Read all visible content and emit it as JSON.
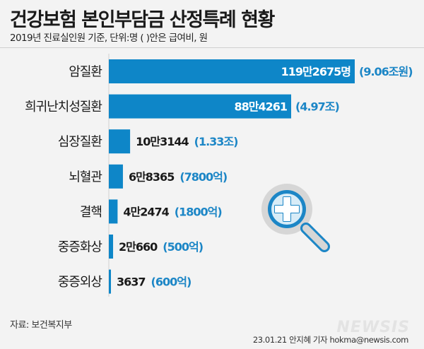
{
  "header": {
    "title": "건강보험 본인부담금 산정특례 현황",
    "subtitle": "2019년 진료실인원 기준, 단위:명 ( )안은 급여비, 원"
  },
  "footer": {
    "source": "자료: 보건복지부",
    "credit": "23.01.21 안지혜 기자 hokma@newsis.com",
    "logo": "NEWSIS"
  },
  "colors": {
    "bar": "#0e86c8",
    "accent": "#1c86c6",
    "label": "#1a1a1a",
    "icon_ring": "#d6d6d6",
    "icon_handle": "#1c86c6"
  },
  "icon": "magnifier-medical-cross-icon",
  "chart_data": {
    "type": "bar",
    "orientation": "horizontal",
    "categories": [
      "암질환",
      "희귀난치성질환",
      "심장질환",
      "뇌혈관",
      "결핵",
      "중증화상",
      "중증외상"
    ],
    "values": [
      1192675,
      884261,
      103144,
      68365,
      42474,
      20660,
      3637
    ],
    "value_labels": [
      "119만2675명",
      "88만4261",
      "10만3144",
      "6만8365",
      "4만2474",
      "2만660",
      "3637"
    ],
    "secondary_labels": [
      "(9.06조원)",
      "(4.97조)",
      "(1.33조)",
      "(7800억)",
      "(1800억)",
      "(500억)",
      "(600억)"
    ],
    "secondary_values_won": [
      9060000000000,
      4970000000000,
      1330000000000,
      780000000000,
      180000000000,
      50000000000,
      60000000000
    ],
    "xlim": [
      0,
      1192675
    ],
    "grid": false,
    "legend": "none"
  }
}
